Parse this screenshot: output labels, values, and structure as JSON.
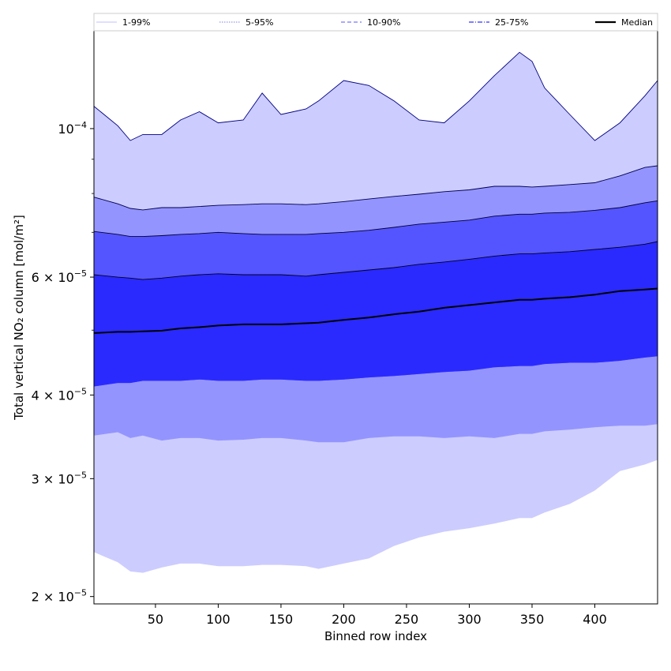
{
  "chart_data": {
    "type": "area",
    "xlabel": "Binned row index",
    "ylabel": "Total vertical NO₂ column [mol/m²]",
    "xlim": [
      1,
      450
    ],
    "ylim": [
      1.95e-05,
      0.00014
    ],
    "yscale": "log",
    "grid": false,
    "legend_placement": "top",
    "x_ticks": [
      50,
      100,
      150,
      200,
      250,
      300,
      350,
      400
    ],
    "x_tick_labels": [
      "50",
      "100",
      "150",
      "200",
      "250",
      "300",
      "350",
      "400"
    ],
    "y_ticks": [
      {
        "value": 2e-05,
        "mantissa": "2",
        "exponent": "−5"
      },
      {
        "value": 3e-05,
        "mantissa": "3",
        "exponent": "−5"
      },
      {
        "value": 4e-05,
        "mantissa": "4",
        "exponent": "−5"
      },
      {
        "value": 6e-05,
        "mantissa": "6",
        "exponent": "−5"
      },
      {
        "value": 0.0001,
        "mantissa": "",
        "exponent": "−4"
      }
    ],
    "legend": [
      {
        "label": "1-99%",
        "color": "#ccccff",
        "style": "solid"
      },
      {
        "label": "5-95%",
        "color": "#9999ee",
        "style": "dotted"
      },
      {
        "label": "10-90%",
        "color": "#7777ff",
        "style": "dashed"
      },
      {
        "label": "25-75%",
        "color": "#3333ff",
        "style": "dashdot"
      },
      {
        "label": "Median",
        "color": "#000000",
        "style": "solid"
      }
    ],
    "bands": [
      {
        "name": "1-99%",
        "color": "#ccccff",
        "line_color": "#000080"
      },
      {
        "name": "5-95%",
        "color": "#9494ff",
        "line_color": "#00004d"
      },
      {
        "name": "10-90%",
        "color": "#5555ff",
        "line_color": "#000033"
      },
      {
        "name": "25-75%",
        "color": "#2a2aff",
        "line_color": "#000020"
      }
    ],
    "x": [
      1,
      20,
      30,
      40,
      55,
      70,
      85,
      100,
      120,
      135,
      150,
      170,
      180,
      200,
      220,
      240,
      260,
      280,
      300,
      320,
      340,
      350,
      360,
      380,
      400,
      420,
      440,
      450
    ],
    "series": [
      {
        "name": "1-99% lower",
        "values": [
          2.33e-05,
          2.25e-05,
          2.18e-05,
          2.17e-05,
          2.21e-05,
          2.24e-05,
          2.24e-05,
          2.22e-05,
          2.22e-05,
          2.23e-05,
          2.23e-05,
          2.22e-05,
          2.2e-05,
          2.24e-05,
          2.28e-05,
          2.38e-05,
          2.45e-05,
          2.5e-05,
          2.53e-05,
          2.57e-05,
          2.62e-05,
          2.62e-05,
          2.67e-05,
          2.75e-05,
          2.88e-05,
          3.08e-05,
          3.15e-05,
          3.2e-05
        ]
      },
      {
        "name": "1-99% upper",
        "values": [
          0.000108,
          0.000101,
          9.6e-05,
          9.8e-05,
          9.8e-05,
          0.000103,
          0.000106,
          0.000102,
          0.000103,
          0.000113,
          0.000105,
          0.000107,
          0.00011,
          0.000118,
          0.000116,
          0.00011,
          0.000103,
          0.000102,
          0.00011,
          0.00012,
          0.00013,
          0.000126,
          0.000115,
          0.000105,
          9.6e-05,
          0.000102,
          0.000112,
          0.000118
        ]
      },
      {
        "name": "5-95% lower",
        "values": [
          3.48e-05,
          3.52e-05,
          3.45e-05,
          3.48e-05,
          3.42e-05,
          3.45e-05,
          3.45e-05,
          3.42e-05,
          3.43e-05,
          3.45e-05,
          3.45e-05,
          3.42e-05,
          3.4e-05,
          3.4e-05,
          3.45e-05,
          3.47e-05,
          3.47e-05,
          3.45e-05,
          3.47e-05,
          3.45e-05,
          3.5e-05,
          3.5e-05,
          3.53e-05,
          3.55e-05,
          3.58e-05,
          3.6e-05,
          3.6e-05,
          3.62e-05
        ]
      },
      {
        "name": "5-95% upper",
        "values": [
          7.9e-05,
          7.72e-05,
          7.6e-05,
          7.56e-05,
          7.62e-05,
          7.62e-05,
          7.65e-05,
          7.68e-05,
          7.7e-05,
          7.72e-05,
          7.72e-05,
          7.7e-05,
          7.72e-05,
          7.78e-05,
          7.85e-05,
          7.92e-05,
          7.98e-05,
          8.05e-05,
          8.1e-05,
          8.2e-05,
          8.2e-05,
          8.18e-05,
          8.2e-05,
          8.25e-05,
          8.3e-05,
          8.5e-05,
          8.75e-05,
          8.8e-05
        ]
      },
      {
        "name": "10-90% lower",
        "values": [
          4.12e-05,
          4.17e-05,
          4.17e-05,
          4.2e-05,
          4.2e-05,
          4.2e-05,
          4.22e-05,
          4.2e-05,
          4.2e-05,
          4.22e-05,
          4.22e-05,
          4.2e-05,
          4.2e-05,
          4.22e-05,
          4.25e-05,
          4.27e-05,
          4.3e-05,
          4.33e-05,
          4.35e-05,
          4.4e-05,
          4.42e-05,
          4.42e-05,
          4.45e-05,
          4.47e-05,
          4.47e-05,
          4.5e-05,
          4.55e-05,
          4.57e-05
        ]
      },
      {
        "name": "10-90% upper",
        "values": [
          7.02e-05,
          6.95e-05,
          6.9e-05,
          6.9e-05,
          6.92e-05,
          6.95e-05,
          6.97e-05,
          7e-05,
          6.97e-05,
          6.95e-05,
          6.95e-05,
          6.95e-05,
          6.97e-05,
          7e-05,
          7.05e-05,
          7.12e-05,
          7.2e-05,
          7.25e-05,
          7.3e-05,
          7.4e-05,
          7.45e-05,
          7.45e-05,
          7.48e-05,
          7.5e-05,
          7.55e-05,
          7.62e-05,
          7.75e-05,
          7.8e-05
        ]
      },
      {
        "name": "25-75% lower",
        "values": [
          4.12e-05,
          4.17e-05,
          4.17e-05,
          4.2e-05,
          4.2e-05,
          4.2e-05,
          4.22e-05,
          4.2e-05,
          4.2e-05,
          4.22e-05,
          4.22e-05,
          4.2e-05,
          4.2e-05,
          4.22e-05,
          4.25e-05,
          4.27e-05,
          4.3e-05,
          4.33e-05,
          4.35e-05,
          4.4e-05,
          4.42e-05,
          4.42e-05,
          4.45e-05,
          4.47e-05,
          4.47e-05,
          4.5e-05,
          4.55e-05,
          4.57e-05
        ]
      },
      {
        "name": "25-75% upper",
        "values": [
          6.05e-05,
          6e-05,
          5.98e-05,
          5.95e-05,
          5.98e-05,
          6.02e-05,
          6.05e-05,
          6.07e-05,
          6.05e-05,
          6.05e-05,
          6.05e-05,
          6.02e-05,
          6.05e-05,
          6.1e-05,
          6.15e-05,
          6.2e-05,
          6.27e-05,
          6.32e-05,
          6.38e-05,
          6.45e-05,
          6.5e-05,
          6.5e-05,
          6.52e-05,
          6.55e-05,
          6.6e-05,
          6.65e-05,
          6.72e-05,
          6.78e-05
        ]
      },
      {
        "name": "Median",
        "values": [
          4.95e-05,
          4.97e-05,
          4.97e-05,
          4.98e-05,
          4.99e-05,
          5.03e-05,
          5.05e-05,
          5.08e-05,
          5.1e-05,
          5.1e-05,
          5.1e-05,
          5.12e-05,
          5.13e-05,
          5.18e-05,
          5.22e-05,
          5.28e-05,
          5.33e-05,
          5.4e-05,
          5.45e-05,
          5.5e-05,
          5.55e-05,
          5.55e-05,
          5.57e-05,
          5.6e-05,
          5.65e-05,
          5.72e-05,
          5.75e-05,
          5.77e-05
        ]
      }
    ]
  }
}
